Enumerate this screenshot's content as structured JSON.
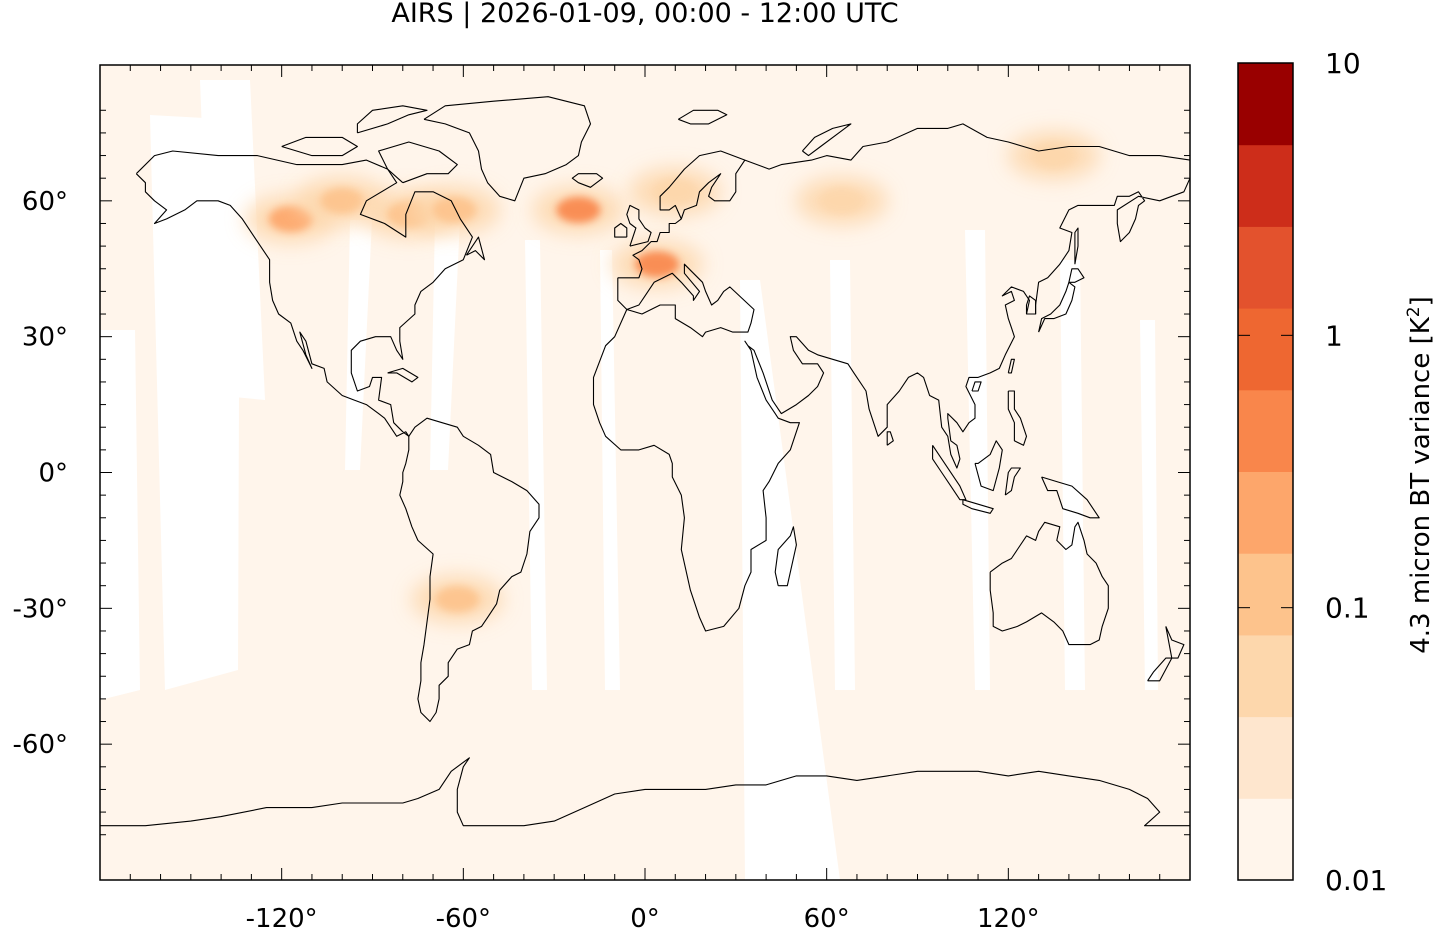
{
  "title": "AIRS | 2026-01-09, 00:00 - 12:00 UTC",
  "map": {
    "projection": "equirectangular",
    "lon_range": [
      -180,
      180
    ],
    "lat_range": [
      -90,
      90
    ],
    "x_ticks": [
      {
        "value": -120,
        "label": "-120°"
      },
      {
        "value": -60,
        "label": "-60°"
      },
      {
        "value": 0,
        "label": "0°"
      },
      {
        "value": 60,
        "label": "60°"
      },
      {
        "value": 120,
        "label": "120°"
      }
    ],
    "y_ticks": [
      {
        "value": 60,
        "label": "60°"
      },
      {
        "value": 30,
        "label": "30°"
      },
      {
        "value": 0,
        "label": "0°"
      },
      {
        "value": -30,
        "label": "-30°"
      },
      {
        "value": -60,
        "label": "-60°"
      }
    ],
    "background_color": "#fff5eb",
    "gap_color": "#ffffff",
    "coastline_color": "#000000"
  },
  "colorbar": {
    "label": "4.3 micron BT variance [K",
    "label_superscript": "2",
    "label_suffix": "]",
    "scale": "log",
    "range": [
      0.01,
      10
    ],
    "tick_labels": [
      {
        "value": 10,
        "label": "10"
      },
      {
        "value": 1,
        "label": "1"
      },
      {
        "value": 0.1,
        "label": "0.1"
      },
      {
        "value": 0.01,
        "label": "0.01"
      }
    ],
    "levels_colors": [
      "#fff5eb",
      "#fee6ce",
      "#fdd7ac",
      "#fdc38c",
      "#fda66b",
      "#f9864b",
      "#ee6731",
      "#e3522d",
      "#cd2d1a",
      "#990000"
    ]
  },
  "hotspots": [
    {
      "name": "canada-west",
      "lon": -117,
      "lat": 56,
      "level": 4
    },
    {
      "name": "canada-central",
      "lon": -100,
      "lat": 60,
      "level": 3
    },
    {
      "name": "hudson-bay",
      "lon": -78,
      "lat": 57,
      "level": 3
    },
    {
      "name": "quebec",
      "lon": -63,
      "lat": 58,
      "level": 3
    },
    {
      "name": "north-atlantic",
      "lon": -22,
      "lat": 58,
      "level": 5
    },
    {
      "name": "southern-europe",
      "lon": 4,
      "lat": 46,
      "level": 5
    },
    {
      "name": "south-america",
      "lon": -62,
      "lat": -28,
      "level": 3
    },
    {
      "name": "scandinavia",
      "lon": 10,
      "lat": 62,
      "level": 2
    },
    {
      "name": "siberia",
      "lon": 65,
      "lat": 60,
      "level": 2
    },
    {
      "name": "east-siberia",
      "lon": 135,
      "lat": 70,
      "level": 2
    }
  ]
}
